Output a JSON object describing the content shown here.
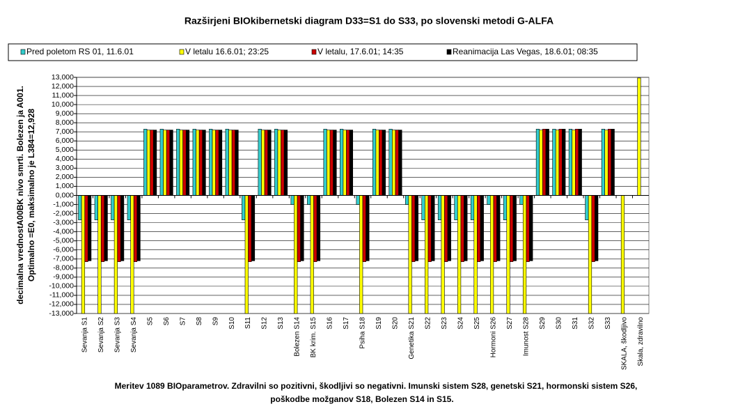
{
  "chart_data": {
    "type": "bar",
    "title": "Razširjeni BIOkibernetski diagram  D33=S1 do S33, po slovenski metodi G-ALFA",
    "y_label": [
      "decimalna vrednostA00BK nivo smrti. Bolezen ja A001.",
      "Optimalno =E0, maksimalno je L384=12,928"
    ],
    "footnote": [
      "Meritev 1089 BIOparametrov. Zdravilni so pozitivni, škodljivi so negativni. Imunski sistem S28, genetski S21, hormonski sistem S26,",
      "poškodbe možganov S18, Bolezen S14 in S15."
    ],
    "categories": [
      "Sevanja S1",
      "Sevanja S2",
      "Sevanja S3",
      "Sevanja S4",
      "S5",
      "S6",
      "S7",
      "S8",
      "S9",
      "S10",
      "S11",
      "S12",
      "S13",
      "Bolezen S14",
      "BK krim. S15",
      "S16",
      "S17",
      "Psiha S18",
      "S19",
      "S20",
      "Genetika S21",
      "S22",
      "S23",
      "S24",
      "S25",
      "Hormoni S26",
      "S27",
      "Imunost S28",
      "S29",
      "S30",
      "S31",
      "S32",
      "S33",
      "SKALA, škodljivo",
      "Skala, zdravilno"
    ],
    "series": [
      {
        "name": "Pred poletom RS 01, 11.6.01",
        "color": "#33cccc",
        "values": [
          -2700,
          -2700,
          -2700,
          -2700,
          7300,
          7300,
          7300,
          7300,
          7300,
          7300,
          -2700,
          7300,
          7300,
          -1000,
          -1000,
          7300,
          7300,
          -1000,
          7300,
          7300,
          -1000,
          -2700,
          -2700,
          -2700,
          -2700,
          -1000,
          -2700,
          -1000,
          7300,
          7300,
          7300,
          -2700,
          7300,
          0,
          0
        ]
      },
      {
        "name": "V letalu 16.6.01; 23:25",
        "color": "#ffff00",
        "values": [
          -13000,
          -13000,
          -13000,
          -13000,
          7200,
          7200,
          7200,
          7200,
          7200,
          7200,
          -13000,
          7200,
          7200,
          -13000,
          -13000,
          7200,
          7200,
          -13000,
          7200,
          7200,
          -13000,
          -13000,
          -13000,
          -13000,
          -13000,
          -13000,
          -13000,
          -13000,
          7200,
          7200,
          7200,
          -13000,
          7200,
          -13000,
          12928
        ]
      },
      {
        "name": "V letalu, 17.6.01; 14:35",
        "color": "#cc0000",
        "values": [
          -7300,
          -7300,
          -7300,
          -7300,
          7200,
          7200,
          7200,
          7200,
          7200,
          7200,
          -7300,
          7200,
          7200,
          -7300,
          -7300,
          7200,
          7200,
          -7300,
          7200,
          7200,
          -7300,
          -7300,
          -7300,
          -7300,
          -7300,
          -7300,
          -7300,
          -7300,
          7300,
          7300,
          7300,
          -7300,
          7300,
          0,
          0
        ]
      },
      {
        "name": "Reanimacija Las Vegas, 18.6.01; 08:35",
        "color": "#000000",
        "values": [
          -7200,
          -7200,
          -7200,
          -7200,
          7200,
          7200,
          7200,
          7200,
          7200,
          7200,
          -7200,
          7200,
          7200,
          -7200,
          -7200,
          7200,
          7200,
          -7200,
          7200,
          7200,
          -7200,
          -7200,
          -7200,
          -7200,
          -7200,
          -7200,
          -7200,
          -7200,
          7300,
          7300,
          7300,
          -7200,
          7300,
          0,
          0
        ]
      }
    ],
    "ylim": [
      -13000,
      13000
    ],
    "yticks": [
      {
        "value": -13000,
        "label": "-13,000"
      },
      {
        "value": -12000,
        "label": "-12,000"
      },
      {
        "value": -11000,
        "label": "-11,000"
      },
      {
        "value": -10000,
        "label": "-10,000"
      },
      {
        "value": -9000,
        "label": "-9,000"
      },
      {
        "value": -8000,
        "label": "-8,000"
      },
      {
        "value": -7000,
        "label": "-7,000"
      },
      {
        "value": -6000,
        "label": "-6,000"
      },
      {
        "value": -5000,
        "label": "-5,000"
      },
      {
        "value": -4000,
        "label": "-4,000"
      },
      {
        "value": -3000,
        "label": "-3,000"
      },
      {
        "value": -2000,
        "label": "-2,000"
      },
      {
        "value": -1000,
        "label": "-1,000"
      },
      {
        "value": 0,
        "label": "0,000"
      },
      {
        "value": 1000,
        "label": "1,000"
      },
      {
        "value": 2000,
        "label": "2,000"
      },
      {
        "value": 3000,
        "label": "3,000"
      },
      {
        "value": 4000,
        "label": "4,000"
      },
      {
        "value": 5000,
        "label": "5,000"
      },
      {
        "value": 6000,
        "label": "6,000"
      },
      {
        "value": 7000,
        "label": "7,000"
      },
      {
        "value": 8000,
        "label": "8,000"
      },
      {
        "value": 9000,
        "label": "9,000"
      },
      {
        "value": 10000,
        "label": "10,000"
      },
      {
        "value": 11000,
        "label": "11,000"
      },
      {
        "value": 12000,
        "label": "12,000"
      },
      {
        "value": 13000,
        "label": "13,000"
      }
    ],
    "grid": true,
    "legend": "top"
  }
}
